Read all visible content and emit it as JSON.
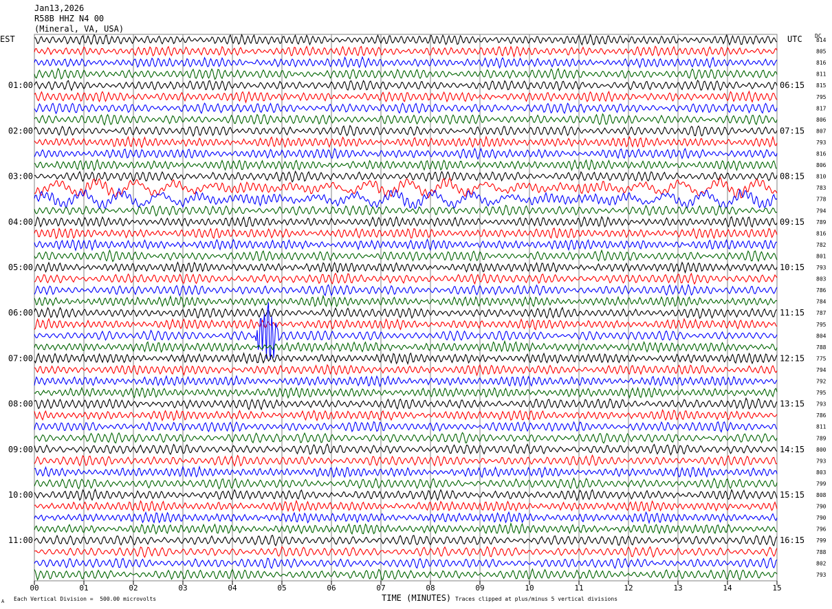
{
  "header": {
    "line1": "Jan13,2026",
    "line2": "R58B HHZ N4 00",
    "line3": "(Mineral, VA, USA)"
  },
  "left_timezone": "EST",
  "right_timezone": "UTC",
  "dc_label": "DC",
  "footer": {
    "left_note": "Each Vertical Division =  500.00 microvolts",
    "xlabel": "TIME (MINUTES)",
    "right_note": "Traces clipped at plus/minus 5 vertical divisions",
    "corner_mark": "A"
  },
  "colors": {
    "trace_cycle": [
      "#000000",
      "#ff0000",
      "#0000ff",
      "#006400"
    ],
    "grid": "#808080"
  },
  "chart_data": {
    "type": "line",
    "subtype": "helicorder",
    "x_ticks": [
      "00",
      "01",
      "02",
      "03",
      "04",
      "05",
      "06",
      "07",
      "08",
      "09",
      "10",
      "11",
      "12",
      "13",
      "14",
      "15"
    ],
    "xlim": [
      0,
      15
    ],
    "xlabel": "TIME (MINUTES)",
    "left_time_labels": [
      "01:00",
      "02:00",
      "03:00",
      "04:00",
      "05:00",
      "06:00",
      "07:00",
      "08:00",
      "09:00",
      "10:00",
      "11:00"
    ],
    "right_time_labels": [
      "06:15",
      "07:15",
      "08:15",
      "09:15",
      "10:15",
      "11:15",
      "12:15",
      "13:15",
      "14:15",
      "15:15",
      "16:15"
    ],
    "rows_per_hour": 4,
    "trace_dc_values": [
      814,
      805,
      816,
      811,
      815,
      795,
      817,
      806,
      807,
      793,
      816,
      806,
      810,
      783,
      778,
      794,
      789,
      816,
      782,
      801,
      793,
      803,
      786,
      784,
      787,
      795,
      804,
      788,
      775,
      794,
      792,
      795,
      793,
      786,
      811,
      789,
      800,
      793,
      803,
      799,
      808,
      790,
      790,
      796,
      799,
      788,
      802,
      793
    ],
    "noted_events": [
      {
        "row": 26,
        "minute": 4.7,
        "description": "large clipped burst"
      },
      {
        "row": 13,
        "minute": 0,
        "description": "high-amplitude long-period noise (rows 13-14)"
      }
    ],
    "grid": true
  }
}
